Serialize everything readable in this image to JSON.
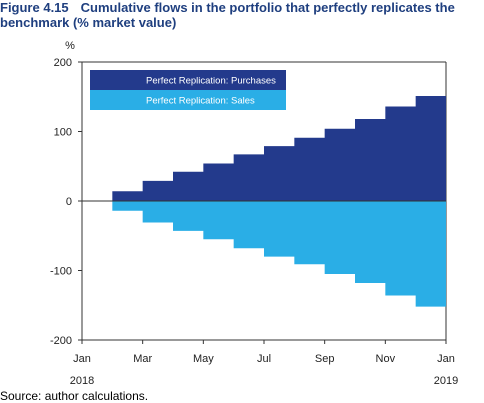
{
  "figure": {
    "number": "Figure 4.15",
    "title": "Cumulative flows in the portfolio that perfectly replicates the benchmark (% market value)",
    "source": "Source: author calculations."
  },
  "chart_data": {
    "type": "area",
    "ylabel": "%",
    "ylim": [
      -200,
      200
    ],
    "yticks": [
      200,
      100,
      0,
      -100,
      -200
    ],
    "xlim": [
      "2018-01",
      "2019-01"
    ],
    "xticks": [
      {
        "label": "Jan",
        "sublabel": "2018"
      },
      {
        "label": "Mar",
        "sublabel": ""
      },
      {
        "label": "May",
        "sublabel": ""
      },
      {
        "label": "Jul",
        "sublabel": ""
      },
      {
        "label": "Sep",
        "sublabel": ""
      },
      {
        "label": "Nov",
        "sublabel": ""
      },
      {
        "label": "Jan",
        "sublabel": "2019"
      }
    ],
    "x": [
      "2018-02",
      "2018-03",
      "2018-04",
      "2018-05",
      "2018-06",
      "2018-07",
      "2018-08",
      "2018-09",
      "2018-10",
      "2018-11",
      "2018-12"
    ],
    "series": [
      {
        "name": "Perfect Replication: Purchases",
        "color": "#233a8c",
        "values": [
          14,
          29,
          42,
          54,
          67,
          79,
          91,
          104,
          118,
          136,
          151
        ]
      },
      {
        "name": "Perfect Replication: Sales",
        "color": "#2aaee6",
        "values": [
          -14,
          -31,
          -43,
          -55,
          -68,
          -80,
          -91,
          -105,
          -118,
          -136,
          -152
        ]
      }
    ],
    "legend_position": "top-left",
    "grid": false
  }
}
